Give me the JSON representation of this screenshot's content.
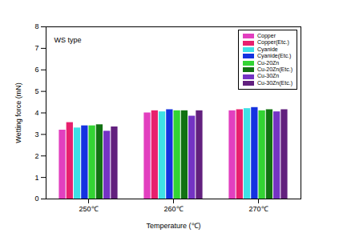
{
  "chart_data": {
    "type": "bar",
    "annotation": "WS type",
    "x_label": "Temperature (℃)",
    "y_label": "Wetting force (mN)",
    "categories": [
      "250℃",
      "260℃",
      "270℃"
    ],
    "series": [
      {
        "name": "Copper",
        "color": "#e23fbf",
        "values": [
          3.2,
          4.0,
          4.1
        ]
      },
      {
        "name": "Copper(Etc.)",
        "color": "#e8206e",
        "values": [
          3.55,
          4.1,
          4.15
        ]
      },
      {
        "name": "Cyanide",
        "color": "#3fe0e6",
        "values": [
          3.3,
          4.05,
          4.2
        ]
      },
      {
        "name": "Cyanide(Etc.)",
        "color": "#1432e0",
        "values": [
          3.4,
          4.15,
          4.25
        ]
      },
      {
        "name": "Cu-20Zn",
        "color": "#33d433",
        "values": [
          3.4,
          4.1,
          4.1
        ]
      },
      {
        "name": "Cu-20Zn(Etc.)",
        "color": "#127212",
        "values": [
          3.45,
          4.1,
          4.15
        ]
      },
      {
        "name": "Cu-30Zn",
        "color": "#7433c4",
        "values": [
          3.15,
          3.85,
          4.05
        ]
      },
      {
        "name": "Cu-30Zn(Etc.)",
        "color": "#62207e",
        "values": [
          3.35,
          4.1,
          4.15
        ]
      }
    ],
    "ylim": [
      0,
      8
    ],
    "yticks": [
      0,
      1,
      2,
      3,
      4,
      5,
      6,
      7,
      8
    ],
    "grid": false,
    "legend": "top-right"
  }
}
